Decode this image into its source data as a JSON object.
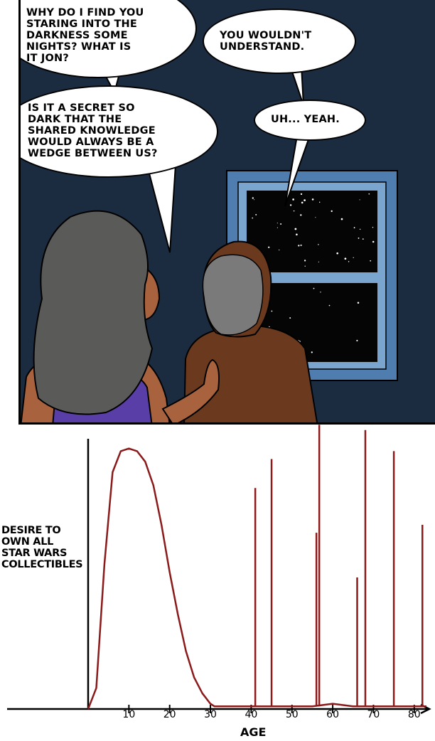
{
  "comic": {
    "speech": {
      "woman_1": "Why do I find you\nstaring into the\ndarkness some\nnights? What is\nit Jon?",
      "man_1": "You wouldn't\nunderstand.",
      "woman_2": "Is it a secret so\ndark that the\nshared knowledge\nwould always be a\nwedge between us?",
      "man_2": "Uh... yeah."
    },
    "colors": {
      "night_wall": "#1b2c40",
      "window_frame": "#4f7db0",
      "sky": "#050505",
      "woman_hair": "#5a5a58",
      "woman_skin": "#a8623e",
      "woman_top": "#5a3ea8",
      "man_hair": "#7a7a7a",
      "man_shirt": "#6b3a1e",
      "curve": "#8b1a1a"
    }
  },
  "chart_data": {
    "type": "line",
    "xlabel": "AGE",
    "ylabel": "Desire to\nown all\nStar Wars\ncollectibles",
    "x_ticks": [
      10,
      20,
      30,
      40,
      50,
      60,
      70,
      80
    ],
    "xlim": [
      0,
      83
    ],
    "ylim": [
      0,
      100
    ],
    "series": [
      {
        "x": [
          0,
          2,
          4,
          6,
          8,
          10,
          12,
          14,
          16,
          18,
          20,
          22,
          24,
          26,
          28,
          30,
          31,
          32,
          35,
          38,
          40,
          45,
          50,
          55,
          60,
          65,
          70,
          75,
          80,
          83
        ],
        "values": [
          0,
          8,
          55,
          90,
          98,
          99,
          98,
          94,
          85,
          70,
          52,
          36,
          22,
          12,
          6,
          2,
          1,
          1,
          1,
          1,
          1,
          1,
          1,
          1,
          2,
          1,
          1,
          1,
          1,
          1
        ]
      }
    ],
    "spikes": [
      {
        "x": 41,
        "y": 84
      },
      {
        "x": 45,
        "y": 95
      },
      {
        "x": 56,
        "y": 67
      },
      {
        "x": 56.7,
        "y": 108
      },
      {
        "x": 66,
        "y": 50
      },
      {
        "x": 68,
        "y": 106
      },
      {
        "x": 75,
        "y": 98
      },
      {
        "x": 82,
        "y": 70
      }
    ]
  }
}
